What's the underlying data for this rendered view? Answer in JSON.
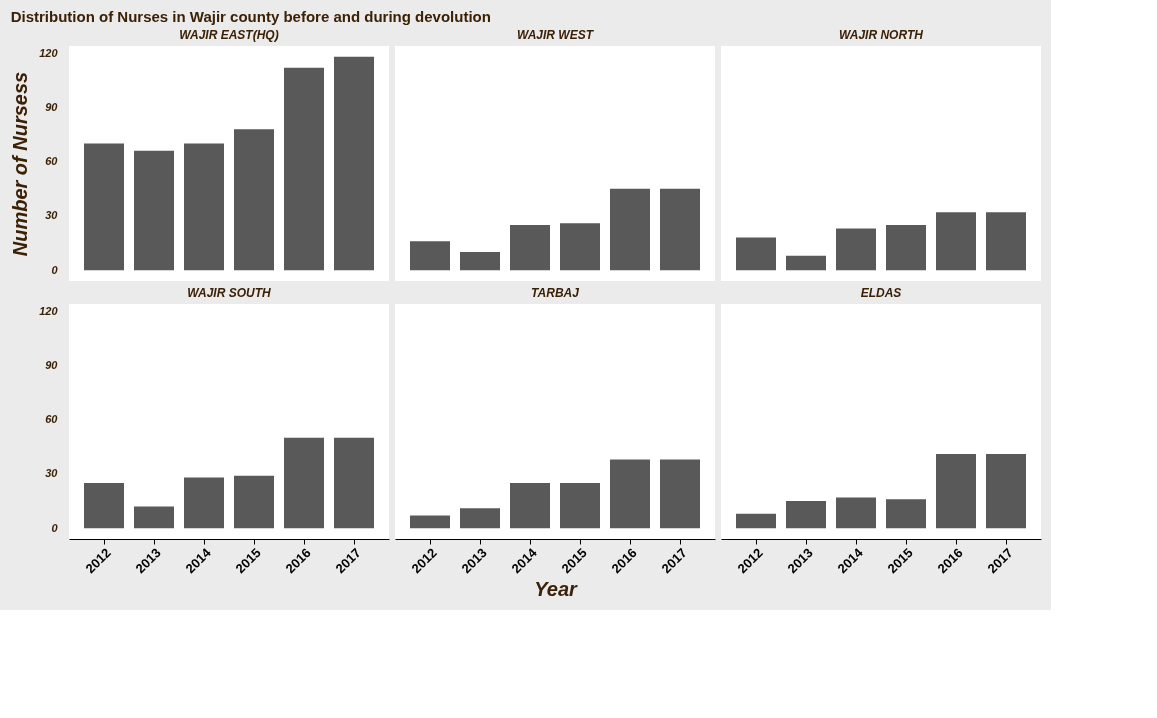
{
  "chart_data": [
    {
      "type": "bar",
      "title": "WAJIR EAST(HQ)",
      "annotations": [
        "Distribution of Nurses in Wajir county before and during devolution"
      ],
      "ylabel": "Number of Nursess",
      "categories": [
        "2012",
        "2013",
        "2014",
        "2015",
        "2016",
        "2017"
      ],
      "values": [
        70,
        66,
        70,
        78,
        112,
        118
      ],
      "color": "#595959",
      "ylim": [
        -6,
        124
      ],
      "yticks": [
        0,
        30,
        60,
        90,
        120
      ],
      "grid": false,
      "tick_labels": "y"
    },
    {
      "type": "bar",
      "title": "WAJIR WEST",
      "categories": [
        "2012",
        "2013",
        "2014",
        "2015",
        "2016",
        "2017"
      ],
      "values": [
        16,
        10,
        25,
        26,
        45,
        45
      ],
      "color": "#595959",
      "ylim": [
        -6,
        124
      ],
      "yticks": [
        0,
        30,
        60,
        90,
        120
      ],
      "grid": false,
      "tick_labels": false
    },
    {
      "type": "bar",
      "title": "WAJIR NORTH",
      "categories": [
        "2012",
        "2013",
        "2014",
        "2015",
        "2016",
        "2017"
      ],
      "values": [
        18,
        8,
        23,
        25,
        32,
        32
      ],
      "color": "#595959",
      "ylim": [
        -6,
        124
      ],
      "yticks": [
        0,
        30,
        60,
        90,
        120
      ],
      "grid": false,
      "tick_labels": false
    },
    {
      "type": "bar",
      "title": "WAJIR  SOUTH",
      "categories": [
        "2012",
        "2013",
        "2014",
        "2015",
        "2016",
        "2017"
      ],
      "values": [
        25,
        12,
        28,
        29,
        50,
        50
      ],
      "color": "#595959",
      "ylim": [
        -6,
        124
      ],
      "yticks": [
        0,
        30,
        60,
        90,
        120
      ],
      "grid": false
    },
    {
      "type": "bar",
      "title": "TARBAJ",
      "xlabel": "Year",
      "categories": [
        "2012",
        "2013",
        "2014",
        "2015",
        "2016",
        "2017"
      ],
      "values": [
        7,
        11,
        25,
        25,
        38,
        38
      ],
      "color": "#595959",
      "ylim": [
        -6,
        124
      ],
      "yticks": [
        0,
        30,
        60,
        90,
        120
      ],
      "grid": false,
      "tick_labels": "x"
    },
    {
      "type": "bar",
      "title": "ELDAS",
      "categories": [
        "2012",
        "2013",
        "2014",
        "2015",
        "2016",
        "2017"
      ],
      "values": [
        8,
        15,
        17,
        16,
        41,
        41
      ],
      "color": "#595959",
      "ylim": [
        -6,
        124
      ],
      "yticks": [
        0,
        30,
        60,
        90,
        120
      ],
      "grid": false,
      "tick_labels": "x"
    }
  ]
}
